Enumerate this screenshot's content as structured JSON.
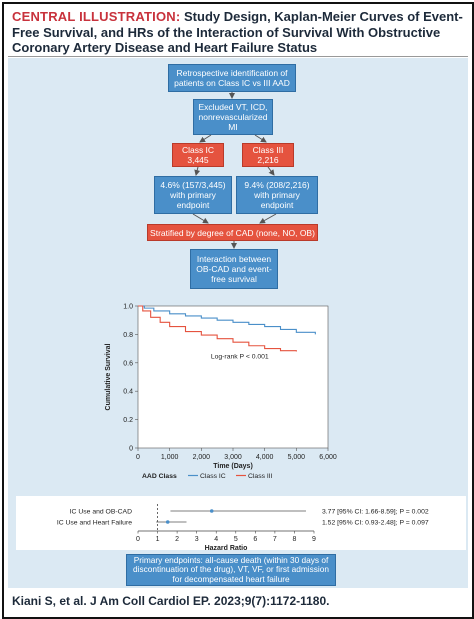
{
  "header": {
    "label": "CENTRAL ILLUSTRATION:",
    "title": "Study Design, Kaplan-Meier Curves of Event-Free Survival, and HRs of the Interaction of Survival With Obstructive Coronary Artery Disease and Heart Failure Status"
  },
  "flow": {
    "box1": "Retrospective identification of patients on Class IC vs III AAD",
    "box2": "Excluded VT, ICD, nonrevascularized MI",
    "class_ic_label": "Class IC",
    "class_ic_n": "3,445",
    "class_iii_label": "Class III",
    "class_iii_n": "2,216",
    "ic_endpoint": "4.6% (157/3,445) with primary endpoint",
    "iii_endpoint": "9.4% (208/2,216) with primary endpoint",
    "stratified": "Stratified by degree of CAD (none, NO, OB)",
    "interaction": "Interaction between OB-CAD and event-free survival"
  },
  "colors": {
    "class_ic": "#4a8fc9",
    "class_iii": "#e5533f",
    "panel": "#dbe9f3"
  },
  "chart_data": [
    {
      "type": "line",
      "ylabel": "Cumulative Survival",
      "xlabel": "Time (Days)",
      "xlim": [
        0,
        6000
      ],
      "ylim": [
        0,
        1.0
      ],
      "xticks": [
        "0",
        "1,000",
        "2,000",
        "3,000",
        "4,000",
        "5,000",
        "6,000"
      ],
      "yticks": [
        "0",
        "0.2",
        "0.4",
        "0.6",
        "0.8",
        "1.0"
      ],
      "annotation": "Log-rank P < 0.001",
      "legend_title": "AAD Class",
      "series": [
        {
          "name": "Class IC",
          "color": "#4a8fc9",
          "points": [
            [
              0,
              1.0
            ],
            [
              200,
              0.985
            ],
            [
              500,
              0.965
            ],
            [
              1000,
              0.945
            ],
            [
              1500,
              0.93
            ],
            [
              2000,
              0.915
            ],
            [
              2500,
              0.9
            ],
            [
              3000,
              0.885
            ],
            [
              3500,
              0.87
            ],
            [
              4000,
              0.855
            ],
            [
              4500,
              0.835
            ],
            [
              5000,
              0.815
            ],
            [
              5600,
              0.8
            ]
          ]
        },
        {
          "name": "Class III",
          "color": "#e5533f",
          "points": [
            [
              0,
              1.0
            ],
            [
              150,
              0.965
            ],
            [
              400,
              0.92
            ],
            [
              700,
              0.885
            ],
            [
              1000,
              0.855
            ],
            [
              1500,
              0.82
            ],
            [
              2000,
              0.795
            ],
            [
              2500,
              0.77
            ],
            [
              3000,
              0.745
            ],
            [
              3500,
              0.72
            ],
            [
              4000,
              0.7
            ],
            [
              4500,
              0.685
            ],
            [
              5000,
              0.68
            ]
          ]
        }
      ]
    },
    {
      "type": "scatter",
      "xlabel": "Hazard Ratio",
      "xlim": [
        0,
        9
      ],
      "xticks": [
        "0",
        "1",
        "2",
        "3",
        "4",
        "5",
        "6",
        "7",
        "8",
        "9"
      ],
      "rows": [
        {
          "label": "IC Use and OB-CAD",
          "hr": 3.77,
          "lo": 1.66,
          "hi": 8.59,
          "text": "3.77 [95% CI: 1.66-8.59]; P = 0.002"
        },
        {
          "label": "IC Use and Heart Failure",
          "hr": 1.52,
          "lo": 0.93,
          "hi": 2.48,
          "text": "1.52 [95% CI: 0.93-2.48]; P = 0.097"
        }
      ]
    }
  ],
  "footer": {
    "endpoints": "Primary endpoints: all-cause death (within 30 days of discontinuation of the drug), VT, VF, or first admission for decompensated heart failure",
    "citation": "Kiani S, et al. J Am Coll Cardiol EP. 2023;9(7):1172-1180."
  }
}
